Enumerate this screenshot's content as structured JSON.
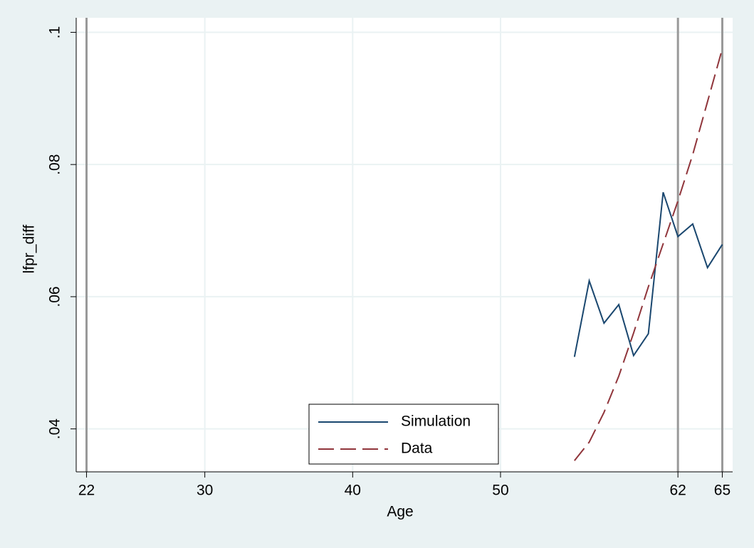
{
  "chart_data": {
    "type": "line",
    "x_label": "Age",
    "y_label": "lfpr_diff",
    "x": [
      55,
      56,
      57,
      58,
      59,
      60,
      61,
      62,
      63,
      64,
      65
    ],
    "series": [
      {
        "name": "Simulation",
        "color": "#1a476f",
        "dash": "solid",
        "values": [
          0.0509,
          0.0624,
          0.056,
          0.0588,
          0.0511,
          0.0544,
          0.0758,
          0.0691,
          0.071,
          0.0644,
          0.0679
        ]
      },
      {
        "name": "Data",
        "color": "#90353b",
        "dash": "dashed",
        "values": [
          0.0352,
          0.038,
          0.0425,
          0.048,
          0.0545,
          0.0615,
          0.068,
          0.0745,
          0.0815,
          0.0895,
          0.0975
        ]
      }
    ],
    "xlim": [
      21.3,
      65.7
    ],
    "ylim": [
      0.0335,
      0.1022
    ],
    "xticks": [
      22,
      30,
      40,
      50,
      62,
      65
    ],
    "yticks": [
      {
        "value": 0.04,
        "label": ".04"
      },
      {
        "value": 0.06,
        "label": ".06"
      },
      {
        "value": 0.08,
        "label": ".08"
      },
      {
        "value": 0.1,
        "label": ".1"
      }
    ],
    "vlines": [
      22,
      62,
      65
    ],
    "vline_color": "#999999",
    "grid": true,
    "legend": "bottom"
  }
}
